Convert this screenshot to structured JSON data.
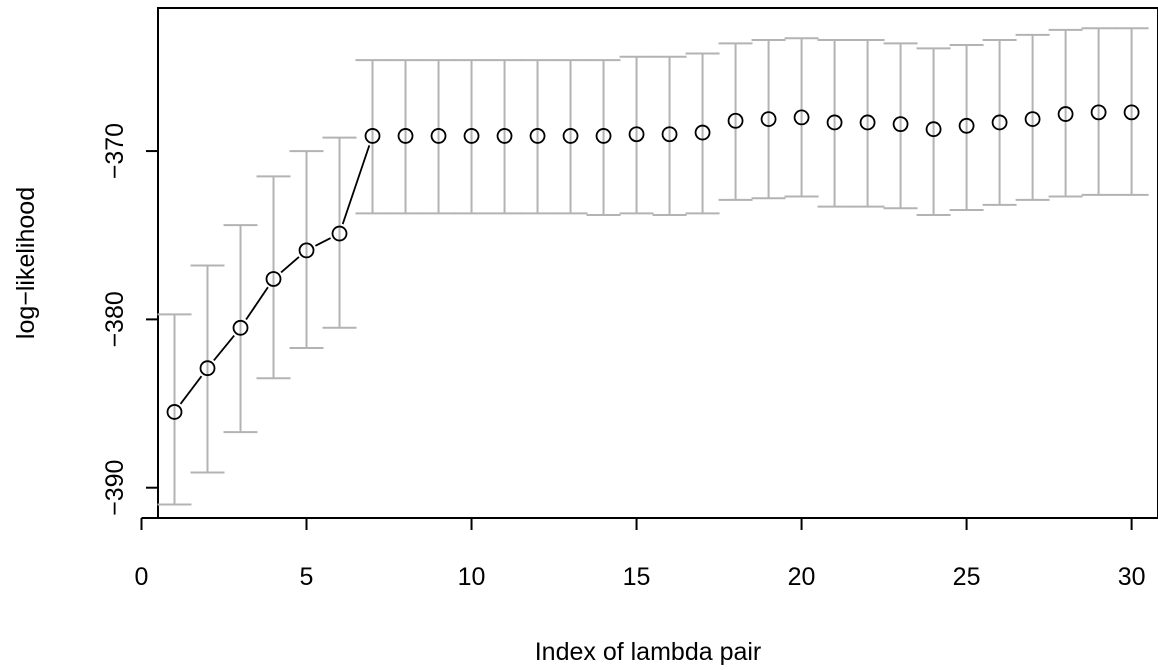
{
  "chart_data": {
    "type": "scatter",
    "title": "",
    "xlabel": "Index of lambda pair",
    "ylabel": "log−likelihood",
    "xlim": [
      0.5,
      30.8
    ],
    "ylim": [
      -391.8,
      -361.5
    ],
    "x_ticks": [
      0,
      5,
      10,
      15,
      20,
      25,
      30
    ],
    "x_tick_labels": [
      "0",
      "5",
      "10",
      "15",
      "20",
      "25",
      "30"
    ],
    "y_ticks": [
      -390,
      -380,
      -370
    ],
    "y_tick_labels": [
      "−390",
      "−380",
      "−370"
    ],
    "grid": false,
    "colors": {
      "points": "#000000",
      "error_bars": "#b3b3b3",
      "line": "#000000",
      "axes": "#000000"
    },
    "points": [
      {
        "x": 1,
        "y": -385.5,
        "lower": -391.0,
        "upper": -379.7
      },
      {
        "x": 2,
        "y": -382.9,
        "lower": -389.1,
        "upper": -376.8
      },
      {
        "x": 3,
        "y": -380.5,
        "lower": -386.7,
        "upper": -374.4
      },
      {
        "x": 4,
        "y": -377.6,
        "lower": -383.5,
        "upper": -371.5
      },
      {
        "x": 5,
        "y": -375.9,
        "lower": -381.7,
        "upper": -370.0
      },
      {
        "x": 6,
        "y": -374.9,
        "lower": -380.5,
        "upper": -369.2
      },
      {
        "x": 7,
        "y": -369.1,
        "lower": -373.7,
        "upper": -364.6
      },
      {
        "x": 8,
        "y": -369.1,
        "lower": -373.7,
        "upper": -364.6
      },
      {
        "x": 9,
        "y": -369.1,
        "lower": -373.7,
        "upper": -364.6
      },
      {
        "x": 10,
        "y": -369.1,
        "lower": -373.7,
        "upper": -364.6
      },
      {
        "x": 11,
        "y": -369.1,
        "lower": -373.7,
        "upper": -364.6
      },
      {
        "x": 12,
        "y": -369.1,
        "lower": -373.7,
        "upper": -364.6
      },
      {
        "x": 13,
        "y": -369.1,
        "lower": -373.7,
        "upper": -364.6
      },
      {
        "x": 14,
        "y": -369.1,
        "lower": -373.8,
        "upper": -364.6
      },
      {
        "x": 15,
        "y": -369.0,
        "lower": -373.7,
        "upper": -364.4
      },
      {
        "x": 16,
        "y": -369.0,
        "lower": -373.8,
        "upper": -364.4
      },
      {
        "x": 17,
        "y": -368.9,
        "lower": -373.7,
        "upper": -364.2
      },
      {
        "x": 18,
        "y": -368.2,
        "lower": -372.9,
        "upper": -363.6
      },
      {
        "x": 19,
        "y": -368.1,
        "lower": -372.8,
        "upper": -363.4
      },
      {
        "x": 20,
        "y": -368.0,
        "lower": -372.7,
        "upper": -363.3
      },
      {
        "x": 21,
        "y": -368.3,
        "lower": -373.3,
        "upper": -363.4
      },
      {
        "x": 22,
        "y": -368.3,
        "lower": -373.3,
        "upper": -363.4
      },
      {
        "x": 23,
        "y": -368.4,
        "lower": -373.4,
        "upper": -363.6
      },
      {
        "x": 24,
        "y": -368.7,
        "lower": -373.8,
        "upper": -363.9
      },
      {
        "x": 25,
        "y": -368.5,
        "lower": -373.5,
        "upper": -363.7
      },
      {
        "x": 26,
        "y": -368.3,
        "lower": -373.2,
        "upper": -363.4
      },
      {
        "x": 27,
        "y": -368.1,
        "lower": -372.9,
        "upper": -363.1
      },
      {
        "x": 28,
        "y": -367.8,
        "lower": -372.7,
        "upper": -362.8
      },
      {
        "x": 29,
        "y": -367.7,
        "lower": -372.6,
        "upper": -362.7
      },
      {
        "x": 30,
        "y": -367.7,
        "lower": -372.6,
        "upper": -362.7
      }
    ],
    "connected_points": [
      1,
      2,
      3,
      4,
      5,
      6,
      7
    ]
  }
}
